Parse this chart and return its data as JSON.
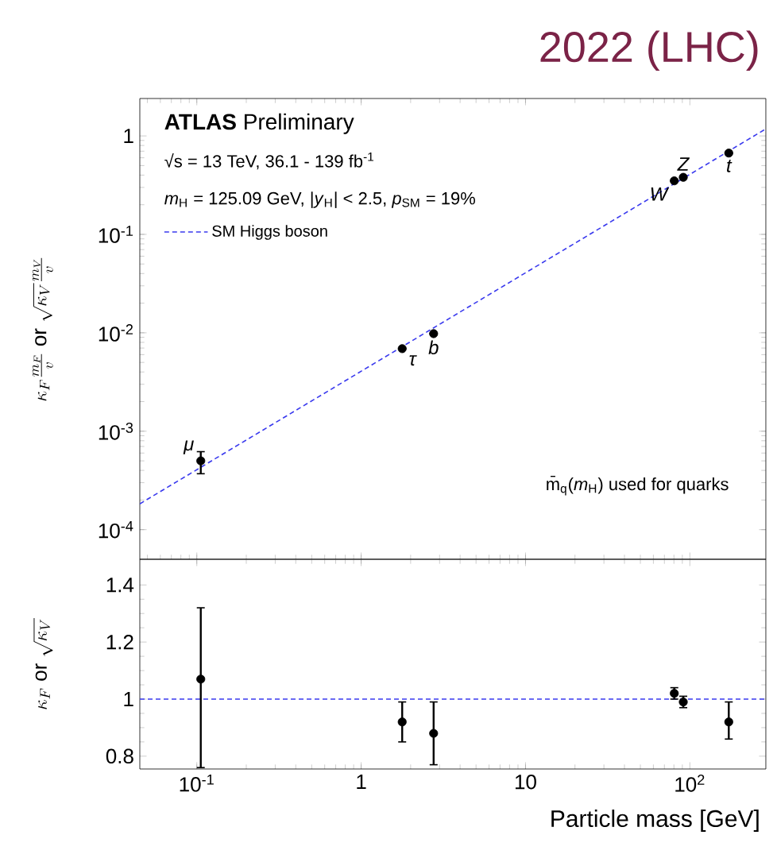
{
  "chart_data": [
    {
      "type": "scatter",
      "title": "2022 (LHC)",
      "ylabel": "\\kappa_F\\frac{m_F}{v}\\mathrm{~or~}\\sqrt{\\kappa_V}\\frac{m_V}{v}",
      "log": "xy",
      "xlim": [
        0.045,
        290
      ],
      "ylim": [
        5e-05,
        2.4
      ],
      "yticks": [
        {
          "value": 0.0001,
          "label": "10$^{-4}$"
        },
        {
          "value": 0.001,
          "label": "10$^{-3}$"
        },
        {
          "value": 0.01,
          "label": "10$^{-2}$"
        },
        {
          "value": 0.1,
          "label": "10$^{-1}$"
        },
        1
      ],
      "tick_labels": "y",
      "legend": "top left",
      "series": [
        {
          "color": "#000000",
          "x": [
            0.1057,
            1.777,
            2.76,
            80.4,
            91.2,
            172.5
          ],
          "values": [
            0.0005,
            0.0069,
            0.0098,
            0.35,
            0.38,
            0.67
          ],
          "errors": [
            [
              0.00037,
              0.00062
            ],
            null,
            null,
            null,
            null,
            null
          ]
        },
        {
          "type": "line",
          "name": "SM Higgs boson",
          "color": "#3a3aee",
          "line_style": "dashed",
          "marker": "none",
          "x": [
            0.045,
            290
          ],
          "values": [
            0.000183,
            1.18
          ]
        }
      ],
      "annotations": [
        "**ATLAS** Preliminary",
        "√s = 13 TeV, 36.1 - 139 fb$^{-1}$",
        "*m*$_{H}$ = 125.09 GeV, |*y*$_{H}$| < 2.5, *p*$_{SM}$ = 19%",
        "m̄$_{q}$(*m*$_{H}$) used for quarks",
        {
          "text": "μ",
          "x": 0.1057,
          "y": 0.0005
        },
        {
          "text": "τ",
          "x": 1.777,
          "y": 0.0069
        },
        {
          "text": "b",
          "x": 2.76,
          "y": 0.0098
        },
        {
          "text": "W",
          "x": 80.4,
          "y": 0.35
        },
        {
          "text": "Z",
          "x": 91.2,
          "y": 0.38
        },
        {
          "text": "t",
          "x": 172.5,
          "y": 0.67
        }
      ]
    },
    {
      "type": "scatter",
      "xlabel": "Particle mass [GeV]",
      "ylabel": "\\kappa_F\\mathrm{~or~}\\sqrt{\\kappa_V}",
      "log": "x",
      "xlim": [
        0.045,
        290
      ],
      "ylim": [
        0.755,
        1.49
      ],
      "xticks": [
        {
          "value": 0.1,
          "label": "10$^{-1}$"
        },
        1,
        10,
        {
          "value": 100,
          "label": "10$^{2}$"
        }
      ],
      "yticks": [
        0.8,
        1,
        1.2,
        1.4
      ],
      "series": [
        {
          "color": "#000000",
          "x": [
            0.1057,
            1.777,
            2.76,
            80.4,
            91.2,
            172.5
          ],
          "values": [
            1.07,
            0.92,
            0.88,
            1.02,
            0.99,
            0.92
          ],
          "errors": [
            [
              0.76,
              1.32
            ],
            [
              0.85,
              0.99
            ],
            [
              0.77,
              0.99
            ],
            [
              1.0,
              1.04
            ],
            [
              0.97,
              1.01
            ],
            [
              0.86,
              0.99
            ]
          ]
        }
      ],
      "ref_lines": [
        {
          "axis": "y",
          "value": 1,
          "color": "#3a3aee",
          "line_style": "dashed"
        }
      ]
    }
  ]
}
